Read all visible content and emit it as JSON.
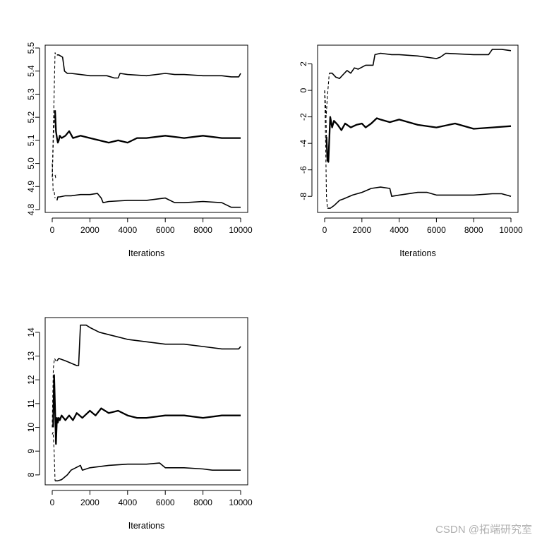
{
  "watermark": "CSDN @拓端研究室",
  "colors": {
    "line": "#000000",
    "background": "#ffffff"
  },
  "chart_data": [
    {
      "type": "line",
      "xlabel": "Iterations",
      "ylabel": "",
      "xlim": [
        0,
        10000
      ],
      "ylim": [
        4.8,
        5.5
      ],
      "xticks": [
        0,
        2000,
        4000,
        6000,
        8000,
        10000
      ],
      "yticks": [
        4.8,
        4.9,
        5.0,
        5.1,
        5.2,
        5.3,
        5.4,
        5.5
      ],
      "ytick_labels": [
        "4.8",
        "4.9",
        "5.0",
        "5.1",
        "5.2",
        "5.3",
        "5.4",
        "5.5"
      ],
      "grid": false,
      "series": [
        {
          "role": "upper",
          "x": [
            250,
            350,
            550,
            650,
            800,
            1000,
            1500,
            2000,
            2500,
            2900,
            3300,
            3500,
            3600,
            4000,
            5000,
            6000,
            6500,
            7000,
            8000,
            9000,
            9500,
            9900,
            10000
          ],
          "y": [
            5.47,
            5.47,
            5.46,
            5.4,
            5.39,
            5.39,
            5.385,
            5.38,
            5.38,
            5.38,
            5.37,
            5.37,
            5.39,
            5.385,
            5.38,
            5.39,
            5.385,
            5.385,
            5.38,
            5.38,
            5.375,
            5.375,
            5.39
          ]
        },
        {
          "role": "mean",
          "x": [
            150,
            200,
            250,
            300,
            350,
            400,
            500,
            700,
            900,
            1100,
            1500,
            2000,
            2500,
            3000,
            3500,
            4000,
            4500,
            5000,
            6000,
            7000,
            8000,
            9000,
            10000
          ],
          "y": [
            5.23,
            5.14,
            5.11,
            5.09,
            5.1,
            5.12,
            5.11,
            5.12,
            5.14,
            5.11,
            5.12,
            5.11,
            5.1,
            5.09,
            5.1,
            5.09,
            5.11,
            5.11,
            5.12,
            5.11,
            5.12,
            5.11,
            5.11
          ]
        },
        {
          "role": "lower",
          "x": [
            250,
            300,
            400,
            700,
            1000,
            1500,
            2000,
            2400,
            2600,
            2700,
            3000,
            4000,
            5000,
            6000,
            6500,
            7000,
            8000,
            9000,
            9500,
            10000
          ],
          "y": [
            4.84,
            4.855,
            4.855,
            4.86,
            4.86,
            4.865,
            4.865,
            4.87,
            4.85,
            4.83,
            4.835,
            4.84,
            4.84,
            4.85,
            4.83,
            4.83,
            4.835,
            4.83,
            4.81,
            4.81
          ]
        },
        {
          "role": "burn-in",
          "segments": [
            {
              "x": [
                0,
                60,
                100,
                150,
                200
              ],
              "y": [
                4.94,
                5.15,
                5.3,
                5.48,
                5.47
              ]
            },
            {
              "x": [
                0,
                50,
                100,
                150
              ],
              "y": [
                5.0,
                4.88,
                4.88,
                4.85
              ]
            },
            {
              "x": [
                150,
                180,
                250
              ],
              "y": [
                4.95,
                4.94,
                4.95
              ]
            },
            {
              "x": [
                0,
                60,
                120,
                150
              ],
              "y": [
                4.94,
                5.1,
                5.2,
                5.23
              ]
            }
          ]
        }
      ]
    },
    {
      "type": "line",
      "xlabel": "Iterations",
      "ylabel": "",
      "xlim": [
        0,
        10000
      ],
      "ylim": [
        -9,
        3.2
      ],
      "xticks": [
        0,
        2000,
        4000,
        6000,
        8000,
        10000
      ],
      "yticks": [
        -8,
        -6,
        -4,
        -2,
        0,
        2
      ],
      "ytick_labels": [
        "-8",
        "-6",
        "-4",
        "-2",
        "0",
        "2"
      ],
      "grid": false,
      "series": [
        {
          "role": "upper",
          "x": [
            250,
            400,
            600,
            800,
            1000,
            1200,
            1400,
            1600,
            1800,
            2200,
            2600,
            2700,
            3000,
            3600,
            4000,
            5000,
            6000,
            6200,
            6500,
            8000,
            8800,
            9000,
            9500,
            10000
          ],
          "y": [
            1.3,
            1.3,
            1.0,
            0.9,
            1.2,
            1.5,
            1.3,
            1.7,
            1.6,
            1.9,
            1.9,
            2.7,
            2.8,
            2.7,
            2.7,
            2.6,
            2.4,
            2.5,
            2.8,
            2.7,
            2.7,
            3.1,
            3.1,
            3.0
          ]
        },
        {
          "role": "mean",
          "x": [
            100,
            150,
            200,
            300,
            400,
            500,
            700,
            900,
            1100,
            1400,
            1700,
            2000,
            2200,
            2500,
            2800,
            3000,
            3500,
            4000,
            5000,
            6000,
            7000,
            8000,
            9000,
            10000
          ],
          "y": [
            -3.5,
            -5.3,
            -5.4,
            -2.0,
            -2.8,
            -2.3,
            -2.6,
            -3.0,
            -2.5,
            -2.8,
            -2.6,
            -2.5,
            -2.8,
            -2.5,
            -2.1,
            -2.2,
            -2.4,
            -2.2,
            -2.6,
            -2.8,
            -2.5,
            -2.9,
            -2.8,
            -2.7
          ]
        },
        {
          "role": "lower",
          "x": [
            150,
            300,
            500,
            800,
            1000,
            1500,
            2000,
            2500,
            3000,
            3500,
            3600,
            4000,
            5000,
            5500,
            6000,
            7000,
            8000,
            9000,
            9500,
            10000
          ],
          "y": [
            -8.9,
            -8.9,
            -8.7,
            -8.3,
            -8.2,
            -7.9,
            -7.7,
            -7.4,
            -7.3,
            -7.4,
            -8.0,
            -7.9,
            -7.7,
            -7.7,
            -7.9,
            -7.9,
            -7.9,
            -7.8,
            -7.8,
            -8.0
          ]
        },
        {
          "role": "burn-in",
          "segments": [
            {
              "x": [
                0,
                80,
                150,
                250
              ],
              "y": [
                0.0,
                -2.0,
                -0.4,
                1.3
              ]
            },
            {
              "x": [
                0,
                50,
                100,
                150
              ],
              "y": [
                0.0,
                -3.5,
                -8.0,
                -8.9
              ]
            },
            {
              "x": [
                0,
                60,
                100
              ],
              "y": [
                0.0,
                -1.5,
                -3.5
              ]
            }
          ]
        }
      ]
    },
    {
      "type": "line",
      "xlabel": "Iterations",
      "ylabel": "",
      "xlim": [
        0,
        10000
      ],
      "ylim": [
        7.7,
        14.5
      ],
      "xticks": [
        0,
        2000,
        4000,
        6000,
        8000,
        10000
      ],
      "yticks": [
        8,
        9,
        10,
        11,
        12,
        13,
        14
      ],
      "ytick_labels": [
        "8",
        "9",
        "10",
        "11",
        "12",
        "13",
        "14"
      ],
      "grid": false,
      "series": [
        {
          "role": "upper",
          "x": [
            250,
            350,
            700,
            1000,
            1300,
            1400,
            1500,
            1800,
            2000,
            2500,
            3000,
            4000,
            5000,
            6000,
            7000,
            8000,
            9000,
            9500,
            9900,
            10000
          ],
          "y": [
            12.8,
            12.9,
            12.8,
            12.7,
            12.6,
            12.6,
            14.3,
            14.3,
            14.2,
            14.0,
            13.9,
            13.7,
            13.6,
            13.5,
            13.5,
            13.4,
            13.3,
            13.3,
            13.3,
            13.4
          ]
        },
        {
          "role": "mean",
          "x": [
            50,
            100,
            150,
            200,
            250,
            300,
            350,
            400,
            500,
            700,
            900,
            1100,
            1300,
            1600,
            2000,
            2300,
            2600,
            3000,
            3500,
            4000,
            4500,
            5000,
            6000,
            7000,
            8000,
            9000,
            10000
          ],
          "y": [
            10.0,
            12.2,
            10.8,
            9.3,
            10.4,
            10.2,
            10.4,
            10.3,
            10.5,
            10.3,
            10.5,
            10.3,
            10.6,
            10.4,
            10.7,
            10.5,
            10.8,
            10.6,
            10.7,
            10.5,
            10.4,
            10.4,
            10.5,
            10.5,
            10.4,
            10.5,
            10.5
          ]
        },
        {
          "role": "lower",
          "x": [
            150,
            300,
            500,
            800,
            1000,
            1500,
            1600,
            2000,
            3000,
            4000,
            5000,
            5700,
            6000,
            7000,
            8000,
            8500,
            9000,
            10000
          ],
          "y": [
            7.75,
            7.75,
            7.8,
            8.0,
            8.2,
            8.4,
            8.2,
            8.3,
            8.4,
            8.45,
            8.45,
            8.5,
            8.3,
            8.3,
            8.25,
            8.2,
            8.2,
            8.2
          ]
        },
        {
          "role": "burn-in",
          "segments": [
            {
              "x": [
                0,
                60,
                120,
                200,
                250
              ],
              "y": [
                10.0,
                12.5,
                12.9,
                12.8,
                12.8
              ]
            },
            {
              "x": [
                0,
                50,
                100,
                150
              ],
              "y": [
                9.7,
                9.8,
                9.0,
                7.75
              ]
            }
          ]
        }
      ]
    }
  ]
}
